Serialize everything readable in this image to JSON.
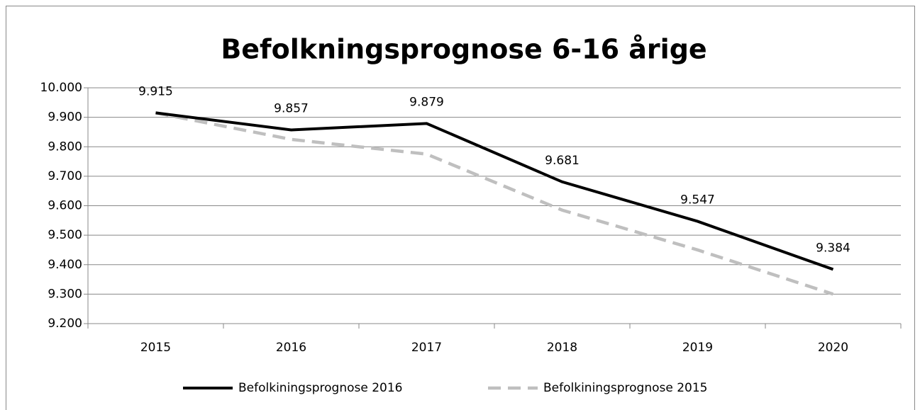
{
  "chart_data": {
    "type": "line",
    "title": "Befolkningsprognose 6-16 årige",
    "categories": [
      "2015",
      "2016",
      "2017",
      "2018",
      "2019",
      "2020"
    ],
    "series": [
      {
        "name": "Befolkiningsprognose 2016",
        "color": "#000000",
        "dashed": false,
        "values": [
          9915,
          9857,
          9879,
          9681,
          9547,
          9384
        ],
        "value_labels": [
          "9.915",
          "9.857",
          "9.879",
          "9.681",
          "9.547",
          "9.384"
        ]
      },
      {
        "name": "Befolkiningsprognose 2015",
        "color": "#bfbfbf",
        "dashed": true,
        "values": [
          9915,
          9825,
          9775,
          9585,
          9450,
          9300
        ]
      }
    ],
    "ylim": [
      9200,
      10000
    ],
    "yticks": [
      {
        "value": 9200,
        "label": "9.200"
      },
      {
        "value": 9300,
        "label": "9.300"
      },
      {
        "value": 9400,
        "label": "9.400"
      },
      {
        "value": 9500,
        "label": "9.500"
      },
      {
        "value": 9600,
        "label": "9.600"
      },
      {
        "value": 9700,
        "label": "9.700"
      },
      {
        "value": 9800,
        "label": "9.800"
      },
      {
        "value": 9900,
        "label": "9.900"
      },
      {
        "value": 10000,
        "label": "10.000"
      }
    ],
    "grid": true,
    "legend": "bottom"
  }
}
